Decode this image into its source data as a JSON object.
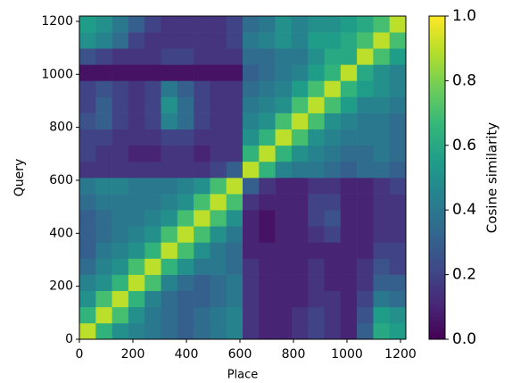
{
  "chart_data": {
    "type": "heatmap",
    "xlabel": "Place",
    "ylabel": "Query",
    "colorbar_label": "Cosine similarity",
    "colormap": "viridis",
    "xlim": [
      0,
      1220
    ],
    "ylim": [
      0,
      1220
    ],
    "xticks": [
      0,
      200,
      400,
      600,
      800,
      1000,
      1200
    ],
    "yticks": [
      0,
      200,
      400,
      600,
      800,
      1000,
      1200
    ],
    "clim": [
      0,
      1
    ],
    "cticks": [
      {
        "value": 0,
        "label": "0.0"
      },
      {
        "value": 0.2,
        "label": "0.2"
      },
      {
        "value": 0.4,
        "label": "0.4"
      },
      {
        "value": 0.6,
        "label": "0.6"
      },
      {
        "value": 0.8,
        "label": "0.8"
      },
      {
        "value": 1,
        "label": "1.0"
      }
    ],
    "x_bins": [
      0,
      61,
      122,
      183,
      244,
      305,
      366,
      427,
      488,
      549,
      610,
      671,
      732,
      793,
      854,
      915,
      976,
      1037,
      1098,
      1159,
      1220
    ],
    "y_bins": [
      0,
      61,
      122,
      183,
      244,
      305,
      366,
      427,
      488,
      549,
      610,
      671,
      732,
      793,
      854,
      915,
      976,
      1037,
      1098,
      1159,
      1220
    ],
    "z": [
      [
        0.9,
        0.65,
        0.5,
        0.45,
        0.4,
        0.35,
        0.3,
        0.35,
        0.4,
        0.45,
        0.15,
        0.1,
        0.1,
        0.15,
        0.2,
        0.15,
        0.1,
        0.3,
        0.6,
        0.55
      ],
      [
        0.65,
        0.9,
        0.7,
        0.5,
        0.4,
        0.35,
        0.3,
        0.35,
        0.4,
        0.45,
        0.15,
        0.1,
        0.1,
        0.15,
        0.2,
        0.15,
        0.1,
        0.25,
        0.55,
        0.5
      ],
      [
        0.5,
        0.7,
        0.9,
        0.65,
        0.45,
        0.35,
        0.3,
        0.3,
        0.35,
        0.4,
        0.15,
        0.1,
        0.1,
        0.1,
        0.15,
        0.15,
        0.1,
        0.2,
        0.4,
        0.35
      ],
      [
        0.45,
        0.5,
        0.65,
        0.9,
        0.7,
        0.45,
        0.35,
        0.3,
        0.35,
        0.4,
        0.15,
        0.1,
        0.1,
        0.1,
        0.15,
        0.1,
        0.1,
        0.15,
        0.3,
        0.3
      ],
      [
        0.35,
        0.45,
        0.5,
        0.7,
        0.9,
        0.65,
        0.5,
        0.4,
        0.4,
        0.35,
        0.15,
        0.1,
        0.1,
        0.1,
        0.15,
        0.1,
        0.1,
        0.15,
        0.25,
        0.2
      ],
      [
        0.3,
        0.4,
        0.45,
        0.5,
        0.65,
        0.9,
        0.7,
        0.5,
        0.4,
        0.35,
        0.1,
        0.1,
        0.1,
        0.1,
        0.1,
        0.1,
        0.1,
        0.1,
        0.2,
        0.2
      ],
      [
        0.3,
        0.35,
        0.4,
        0.45,
        0.5,
        0.7,
        0.9,
        0.7,
        0.5,
        0.4,
        0.1,
        0.05,
        0.1,
        0.1,
        0.15,
        0.2,
        0.1,
        0.1,
        0.15,
        0.15
      ],
      [
        0.3,
        0.35,
        0.4,
        0.4,
        0.45,
        0.5,
        0.7,
        0.9,
        0.7,
        0.5,
        0.1,
        0.05,
        0.1,
        0.1,
        0.2,
        0.25,
        0.1,
        0.1,
        0.15,
        0.15
      ],
      [
        0.35,
        0.4,
        0.4,
        0.4,
        0.4,
        0.45,
        0.5,
        0.7,
        0.9,
        0.7,
        0.15,
        0.1,
        0.1,
        0.1,
        0.2,
        0.2,
        0.1,
        0.1,
        0.15,
        0.15
      ],
      [
        0.4,
        0.45,
        0.45,
        0.4,
        0.4,
        0.4,
        0.45,
        0.5,
        0.7,
        0.9,
        0.3,
        0.15,
        0.1,
        0.1,
        0.15,
        0.15,
        0.1,
        0.1,
        0.15,
        0.2
      ],
      [
        0.15,
        0.15,
        0.15,
        0.15,
        0.15,
        0.15,
        0.15,
        0.15,
        0.2,
        0.3,
        0.9,
        0.65,
        0.45,
        0.4,
        0.4,
        0.35,
        0.3,
        0.35,
        0.35,
        0.3
      ],
      [
        0.2,
        0.15,
        0.15,
        0.1,
        0.1,
        0.15,
        0.15,
        0.1,
        0.15,
        0.15,
        0.65,
        0.9,
        0.65,
        0.5,
        0.45,
        0.4,
        0.35,
        0.35,
        0.4,
        0.35
      ],
      [
        0.2,
        0.2,
        0.15,
        0.15,
        0.15,
        0.2,
        0.2,
        0.15,
        0.15,
        0.15,
        0.5,
        0.65,
        0.9,
        0.7,
        0.5,
        0.45,
        0.4,
        0.4,
        0.4,
        0.35
      ],
      [
        0.25,
        0.3,
        0.2,
        0.15,
        0.2,
        0.45,
        0.35,
        0.2,
        0.15,
        0.15,
        0.45,
        0.5,
        0.7,
        0.9,
        0.7,
        0.5,
        0.45,
        0.4,
        0.4,
        0.35
      ],
      [
        0.2,
        0.3,
        0.2,
        0.15,
        0.2,
        0.5,
        0.35,
        0.2,
        0.15,
        0.15,
        0.4,
        0.45,
        0.5,
        0.7,
        0.9,
        0.7,
        0.55,
        0.45,
        0.45,
        0.4
      ],
      [
        0.2,
        0.25,
        0.2,
        0.15,
        0.2,
        0.4,
        0.3,
        0.2,
        0.15,
        0.15,
        0.35,
        0.4,
        0.45,
        0.55,
        0.7,
        0.9,
        0.65,
        0.55,
        0.5,
        0.45
      ],
      [
        0.05,
        0.05,
        0.05,
        0.05,
        0.05,
        0.05,
        0.05,
        0.05,
        0.05,
        0.05,
        0.3,
        0.35,
        0.4,
        0.45,
        0.55,
        0.65,
        0.9,
        0.6,
        0.5,
        0.45
      ],
      [
        0.25,
        0.2,
        0.15,
        0.15,
        0.15,
        0.2,
        0.2,
        0.15,
        0.15,
        0.15,
        0.35,
        0.35,
        0.4,
        0.4,
        0.5,
        0.6,
        0.6,
        0.9,
        0.7,
        0.55
      ],
      [
        0.5,
        0.45,
        0.35,
        0.2,
        0.15,
        0.15,
        0.15,
        0.15,
        0.15,
        0.2,
        0.4,
        0.45,
        0.5,
        0.45,
        0.55,
        0.55,
        0.6,
        0.7,
        0.9,
        0.7
      ],
      [
        0.55,
        0.5,
        0.4,
        0.3,
        0.2,
        0.15,
        0.15,
        0.15,
        0.15,
        0.2,
        0.35,
        0.4,
        0.5,
        0.45,
        0.5,
        0.5,
        0.55,
        0.6,
        0.7,
        0.9
      ]
    ]
  }
}
